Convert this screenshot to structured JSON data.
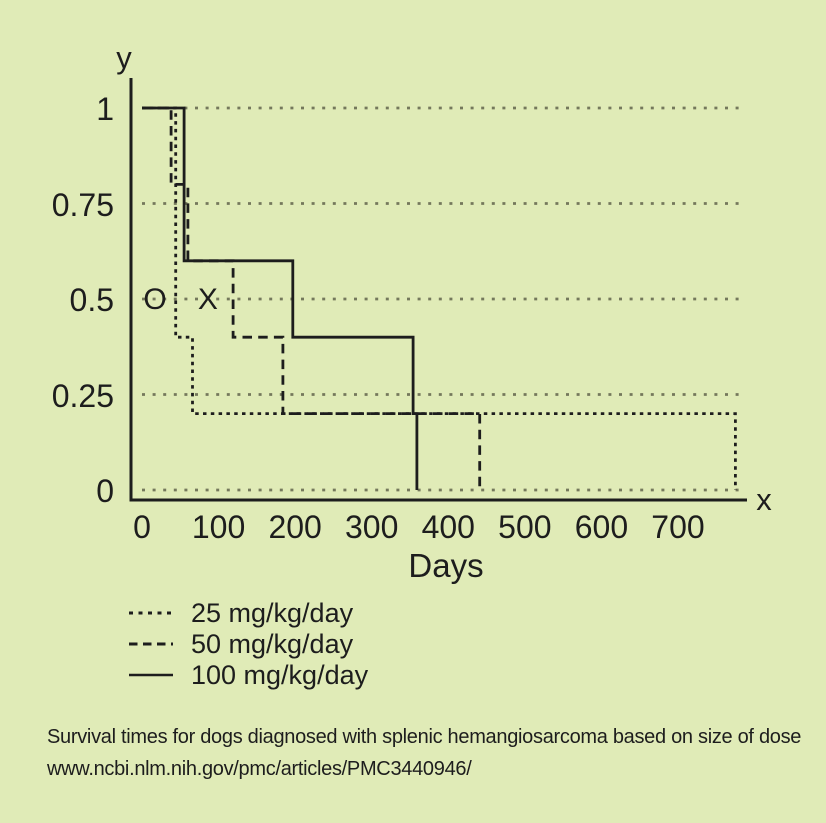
{
  "chart_data": {
    "type": "line",
    "subtype": "step-survival-curve",
    "title": "Survival times for dogs diagnosed with splenic hemangiosarcoma based on size of dose",
    "x_axis_letter": "x",
    "y_axis_letter": "y",
    "xlabel": "Days",
    "x_ticks": [
      "0",
      "100",
      "200",
      "300",
      "400",
      "500",
      "600",
      "700"
    ],
    "x_tick_values": [
      0,
      100,
      200,
      300,
      400,
      500,
      600,
      700
    ],
    "y_ticks": [
      {
        "label": "1",
        "value": 1
      },
      {
        "label": "0.75",
        "value": 0.75
      },
      {
        "label": "0.5",
        "value": 0.5
      },
      {
        "label": "0.25",
        "value": 0.25
      },
      {
        "label": "0",
        "value": 0
      }
    ],
    "xlim": [
      0,
      780
    ],
    "ylim": [
      0,
      1
    ],
    "grid": "horizontal dotted gridlines at each y tick",
    "series": [
      {
        "name": "25 mg/kg/day",
        "style": "dotted",
        "points": [
          [
            0,
            1
          ],
          [
            44,
            1
          ],
          [
            44,
            0.4
          ],
          [
            66,
            0.4
          ],
          [
            66,
            0.2
          ],
          [
            775,
            0.2
          ],
          [
            775,
            0
          ]
        ]
      },
      {
        "name": "50 mg/kg/day",
        "style": "dashed",
        "points": [
          [
            0,
            1
          ],
          [
            38,
            1
          ],
          [
            38,
            0.8
          ],
          [
            60,
            0.8
          ],
          [
            60,
            0.6
          ],
          [
            119,
            0.6
          ],
          [
            119,
            0.4
          ],
          [
            184,
            0.4
          ],
          [
            184,
            0.2
          ],
          [
            441,
            0.2
          ],
          [
            441,
            0
          ]
        ]
      },
      {
        "name": "100 mg/kg/day",
        "style": "solid",
        "points": [
          [
            0,
            1
          ],
          [
            55,
            1
          ],
          [
            55,
            0.6
          ],
          [
            197,
            0.6
          ],
          [
            197,
            0.4
          ],
          [
            354,
            0.4
          ],
          [
            354,
            0.2
          ],
          [
            359,
            0.2
          ],
          [
            359,
            0
          ]
        ]
      }
    ],
    "annotations": [
      {
        "text": "O",
        "x": 17,
        "y": 0.5
      },
      {
        "text": "X",
        "x": 86,
        "y": 0.5
      }
    ],
    "legend_position": "below-left"
  },
  "legend": {
    "items": [
      {
        "label": "25 mg/kg/day",
        "style": "dotted"
      },
      {
        "label": "50 mg/kg/day",
        "style": "dashed"
      },
      {
        "label": "100 mg/kg/day",
        "style": "solid"
      }
    ]
  },
  "caption": {
    "title": "Survival times for dogs diagnosed with splenic hemangiosarcoma based on size of dose",
    "source": "www.ncbi.nlm.nih.gov/pmc/articles/PMC3440946/"
  },
  "colors": {
    "background": "#e0ebb7",
    "ink": "#1d1d1d",
    "gridline": "#74785c"
  }
}
